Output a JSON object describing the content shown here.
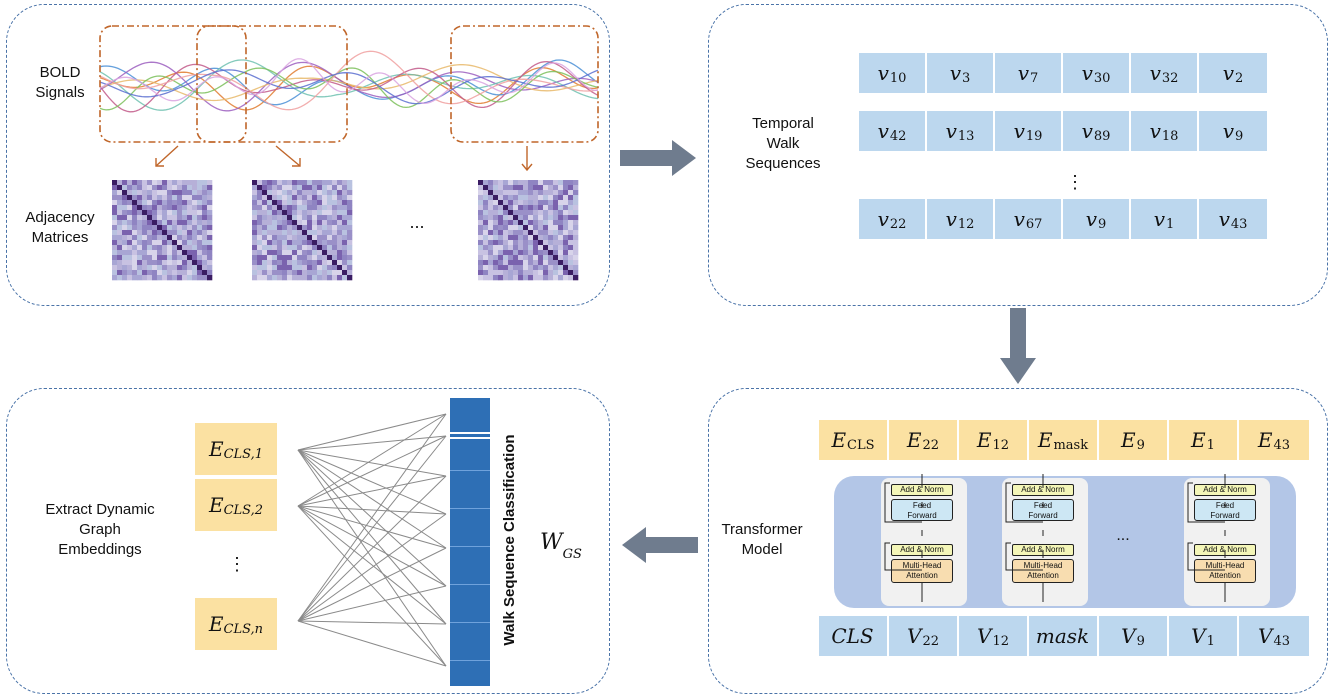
{
  "panel1": {
    "bold_label": [
      "BOLD",
      "Signals"
    ],
    "adj_label": [
      "Adjacency",
      "Matrices"
    ],
    "ellipsis": "..."
  },
  "panel2": {
    "label": [
      "Temporal",
      "Walk",
      "Sequences"
    ],
    "rows": [
      [
        [
          "v",
          "10"
        ],
        [
          "v",
          "3"
        ],
        [
          "v",
          "7"
        ],
        [
          "v",
          "30"
        ],
        [
          "v",
          "32"
        ],
        [
          "v",
          "2"
        ]
      ],
      [
        [
          "v",
          "42"
        ],
        [
          "v",
          "13"
        ],
        [
          "v",
          "19"
        ],
        [
          "v",
          "89"
        ],
        [
          "v",
          "18"
        ],
        [
          "v",
          "9"
        ]
      ],
      [
        [
          "v",
          "22"
        ],
        [
          "v",
          "12"
        ],
        [
          "v",
          "67"
        ],
        [
          "v",
          "9"
        ],
        [
          "v",
          "1"
        ],
        [
          "v",
          "43"
        ]
      ]
    ],
    "vdots": "⋮"
  },
  "panel3": {
    "label": [
      "Transformer",
      "Model"
    ],
    "embeddings": [
      [
        "E",
        "CLS"
      ],
      [
        "E",
        "22"
      ],
      [
        "E",
        "12"
      ],
      [
        "E",
        "mask"
      ],
      [
        "E",
        "9"
      ],
      [
        "E",
        "1"
      ],
      [
        "E",
        "43"
      ]
    ],
    "inputs": [
      [
        "CLS",
        ""
      ],
      [
        "V",
        "22"
      ],
      [
        "V",
        "12"
      ],
      [
        "mask",
        ""
      ],
      [
        "V",
        "9"
      ],
      [
        "V",
        "1"
      ],
      [
        "V",
        "43"
      ]
    ],
    "block": {
      "add_norm": "Add & Norm",
      "feed_forward": [
        "Feed",
        "Forward"
      ],
      "mha": [
        "Multi-Head",
        "Attention"
      ]
    },
    "ellipsis": "..."
  },
  "panel4": {
    "label": [
      "Extract Dynamic",
      "Graph",
      "Embeddings"
    ],
    "cls_nodes": [
      [
        "E",
        "CLS,1"
      ],
      [
        "E",
        "CLS,2"
      ],
      [
        "E",
        "CLS,n"
      ]
    ],
    "vdots": "⋮",
    "classifier_label": "Walk Sequence Classification",
    "weight": [
      "W",
      "GS"
    ]
  },
  "colors": {
    "panel_border": "#4a73a8",
    "cell_blue": "#bcd7ee",
    "cell_yellow": "#fbe1a2",
    "bar_blue": "#2e6fb5",
    "arrow": "#6f7c8e"
  }
}
